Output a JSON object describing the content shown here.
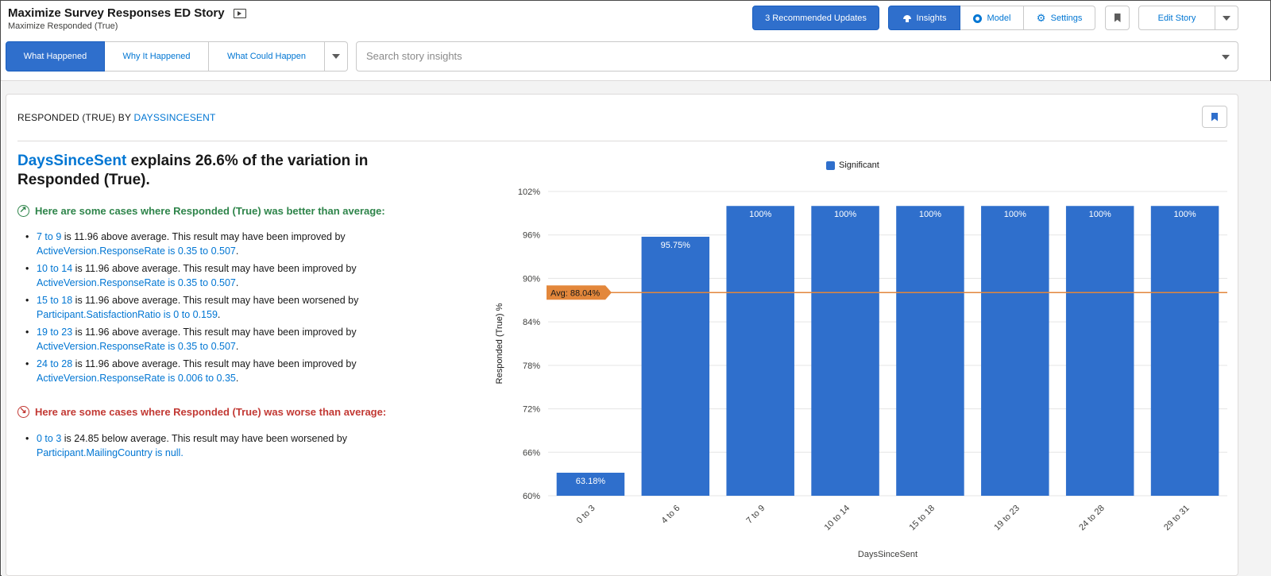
{
  "header": {
    "title": "Maximize Survey Responses ED Story",
    "subtitle": "Maximize Responded (True)",
    "recommended_updates": "3 Recommended Updates",
    "nav": [
      {
        "label": "Insights",
        "icon": "insights-icon",
        "active": true
      },
      {
        "label": "Model",
        "icon": "model-icon",
        "active": false
      },
      {
        "label": "Settings",
        "icon": "gear-icon",
        "active": false
      }
    ],
    "edit_story": "Edit Story"
  },
  "tabs": [
    {
      "label": "What Happened",
      "active": true
    },
    {
      "label": "Why It Happened",
      "active": false
    },
    {
      "label": "What Could Happen",
      "active": false
    }
  ],
  "search": {
    "placeholder": "Search story insights",
    "value": ""
  },
  "card": {
    "title_prefix": "RESPONDED (TRUE) BY ",
    "title_field": "DAYSSINCESENT",
    "headline_field": "DaysSinceSent",
    "headline_rest": " explains 26.6% of the variation in Responded (True).",
    "better_heading": "Here are some cases where Responded (True) was better than average:",
    "better_items": [
      {
        "range": "7 to 9",
        "text": " is 11.96 above average. This result may have been improved by ",
        "factor": "ActiveVersion.ResponseRate is 0.35 to 0.507",
        "end": "."
      },
      {
        "range": "10 to 14",
        "text": " is 11.96 above average. This result may have been improved by ",
        "factor": "ActiveVersion.ResponseRate is 0.35 to 0.507",
        "end": "."
      },
      {
        "range": "15 to 18",
        "text": " is 11.96 above average. This result may have been worsened by ",
        "factor": "Participant.SatisfactionRatio is 0 to 0.159",
        "end": "."
      },
      {
        "range": "19 to 23",
        "text": " is 11.96 above average. This result may have been improved by ",
        "factor": "ActiveVersion.ResponseRate is 0.35 to 0.507",
        "end": "."
      },
      {
        "range": "24 to 28",
        "text": " is 11.96 above average. This result may have been improved by ",
        "factor": "ActiveVersion.ResponseRate is 0.006 to 0.35",
        "end": "."
      }
    ],
    "worse_heading": "Here are some cases where Responded (True) was worse than average:",
    "worse_items": [
      {
        "range": "0 to 3",
        "text": " is 24.85 below average. This result may have been worsened by ",
        "factor": "Participant.MailingCountry is null.",
        "end": ""
      }
    ]
  },
  "colors": {
    "accent": "#2f6fcc",
    "link": "#0176d3",
    "good": "#2e844a",
    "bad": "#c23934",
    "avg_line": "#e3873b"
  },
  "chart_data": {
    "type": "bar",
    "categories": [
      "0 to 3",
      "4 to 6",
      "7 to 9",
      "10 to 14",
      "15 to 18",
      "19 to 23",
      "24 to 28",
      "29 to 31"
    ],
    "series": [
      {
        "name": "Significant",
        "values": [
          63.18,
          95.75,
          100,
          100,
          100,
          100,
          100,
          100
        ]
      }
    ],
    "data_labels": [
      "63.18%",
      "95.75%",
      "100%",
      "100%",
      "100%",
      "100%",
      "100%",
      "100%"
    ],
    "average": {
      "label": "Avg: 88.04%",
      "value": 88.04
    },
    "xlabel": "DaysSinceSent",
    "ylabel": "Responded (True) %",
    "ylim": [
      60,
      102
    ],
    "yticks": [
      60,
      66,
      72,
      78,
      84,
      90,
      96,
      102
    ],
    "ytick_labels": [
      "60%",
      "66%",
      "72%",
      "78%",
      "84%",
      "90%",
      "96%",
      "102%"
    ],
    "legend": "top-center",
    "grid": true
  }
}
